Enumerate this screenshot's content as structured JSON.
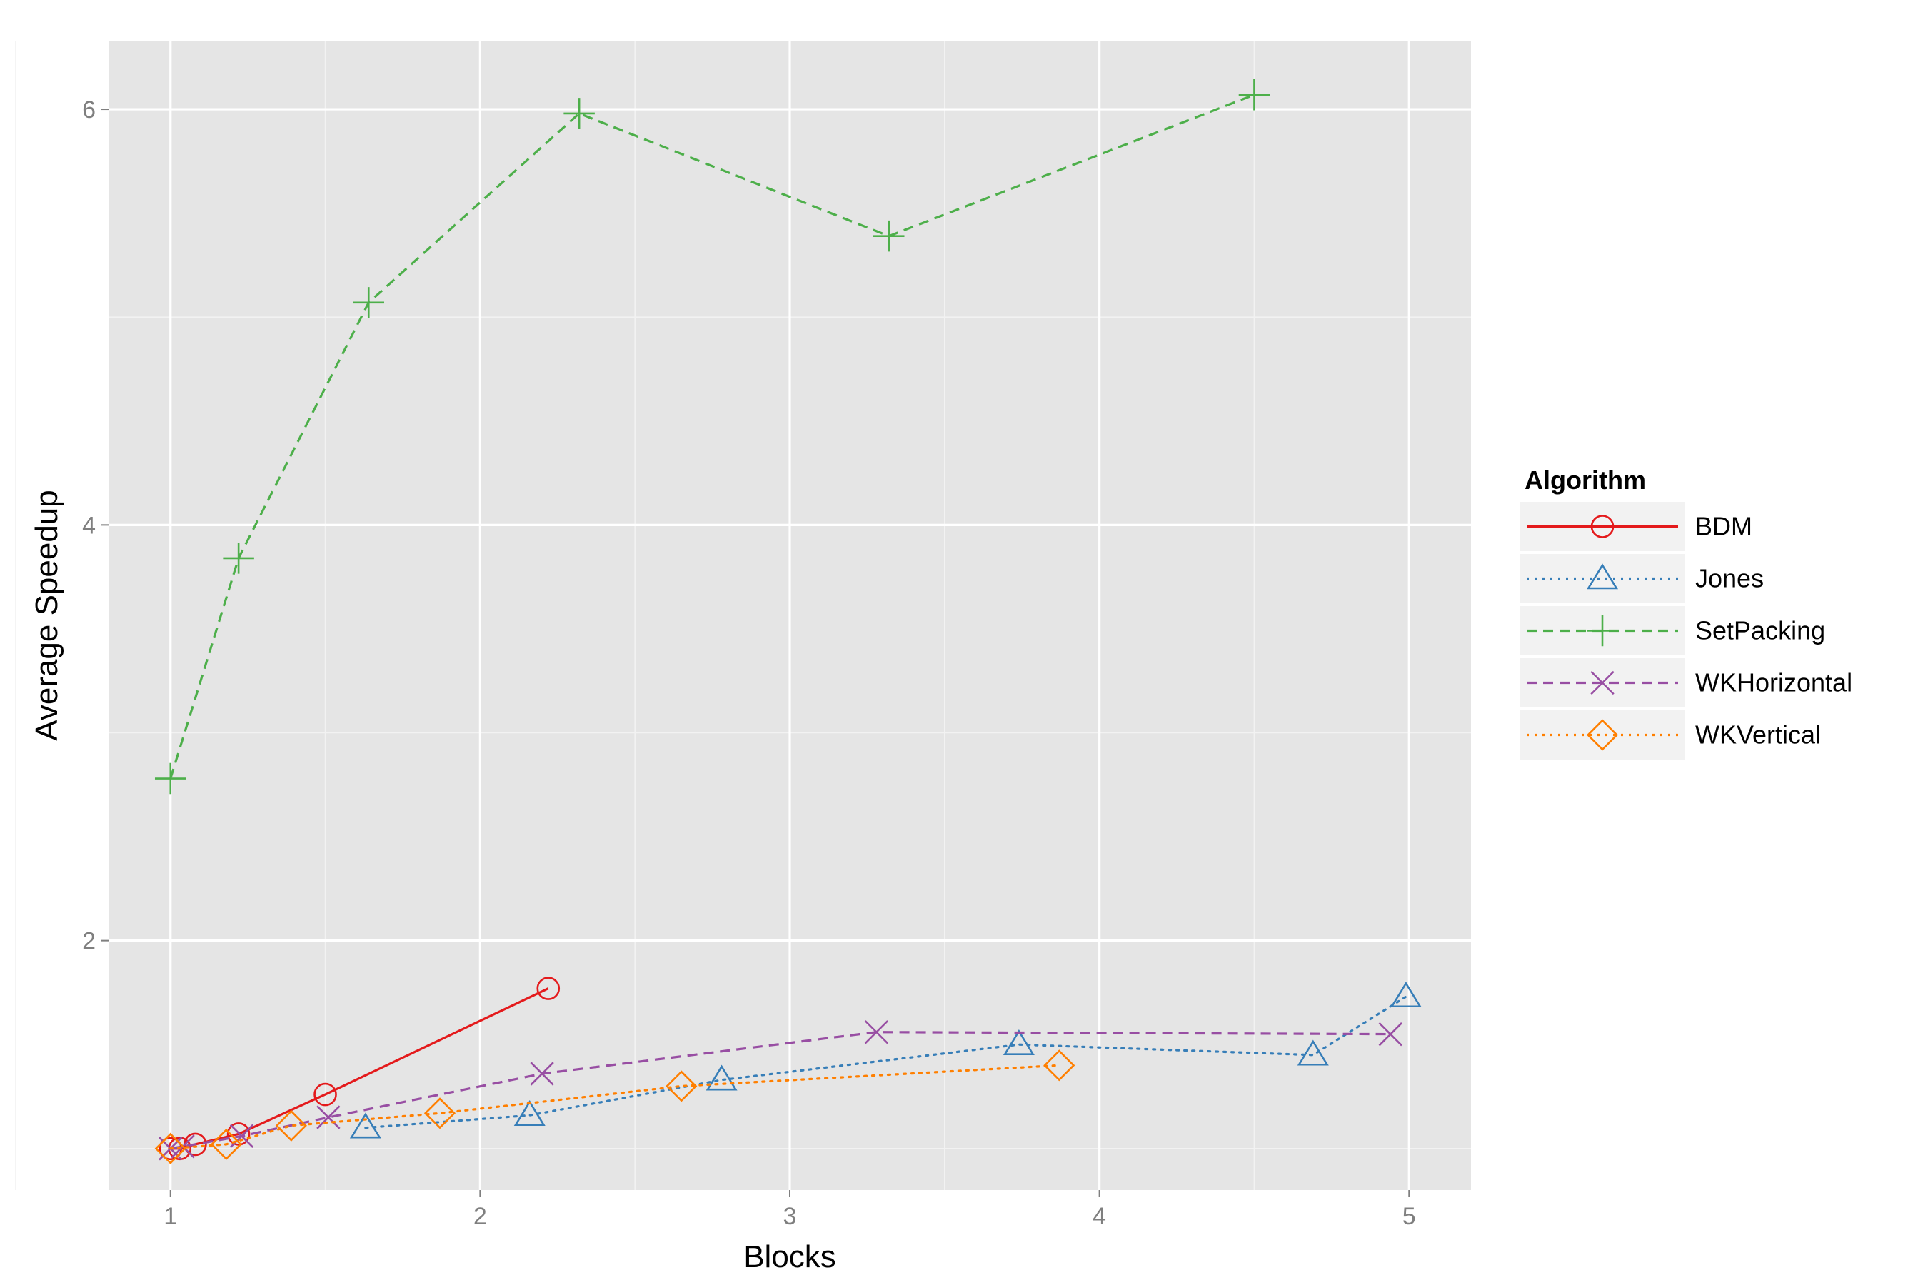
{
  "chart_data": {
    "type": "line",
    "title": "",
    "xlabel": "Blocks",
    "ylabel": "Average Speedup",
    "xlim": [
      0.8,
      5.2
    ],
    "ylim": [
      0.8,
      6.33
    ],
    "x_ticks": [
      "1",
      "2",
      "3",
      "4",
      "5"
    ],
    "y_ticks": [
      "2",
      "4",
      "6"
    ],
    "grid": true,
    "legend": {
      "title": "Algorithm",
      "position": "right"
    },
    "series": [
      {
        "name": "BDM",
        "color": "#e41a1c",
        "marker": "circle",
        "line": "solid",
        "x": [
          1.0,
          1.03,
          1.08,
          1.22,
          1.5,
          2.22
        ],
        "y": [
          1.0,
          1.0,
          1.02,
          1.07,
          1.26,
          1.77
        ]
      },
      {
        "name": "Jones",
        "color": "#377eb8",
        "marker": "triangle",
        "line": "dotted",
        "x": [
          1.63,
          2.16,
          2.78,
          3.74,
          4.69,
          4.99
        ],
        "y": [
          1.1,
          1.16,
          1.33,
          1.5,
          1.45,
          1.73
        ]
      },
      {
        "name": "SetPacking",
        "color": "#4daf4a",
        "marker": "plus",
        "line": "dashed",
        "x": [
          1.0,
          1.22,
          1.64,
          2.32,
          3.32,
          4.5
        ],
        "y": [
          2.78,
          3.84,
          5.07,
          5.98,
          5.39,
          6.07
        ]
      },
      {
        "name": "WKHorizontal",
        "color": "#984ea3",
        "marker": "cross",
        "line": "dashed",
        "x": [
          1.0,
          1.04,
          1.23,
          1.51,
          2.2,
          3.28,
          4.94
        ],
        "y": [
          1.0,
          1.01,
          1.06,
          1.15,
          1.36,
          1.56,
          1.55
        ]
      },
      {
        "name": "WKVertical",
        "color": "#ff7f00",
        "marker": "diamond",
        "line": "dotted",
        "x": [
          1.0,
          1.18,
          1.39,
          1.87,
          2.65,
          3.87
        ],
        "y": [
          1.0,
          1.02,
          1.11,
          1.17,
          1.3,
          1.4
        ]
      }
    ]
  }
}
